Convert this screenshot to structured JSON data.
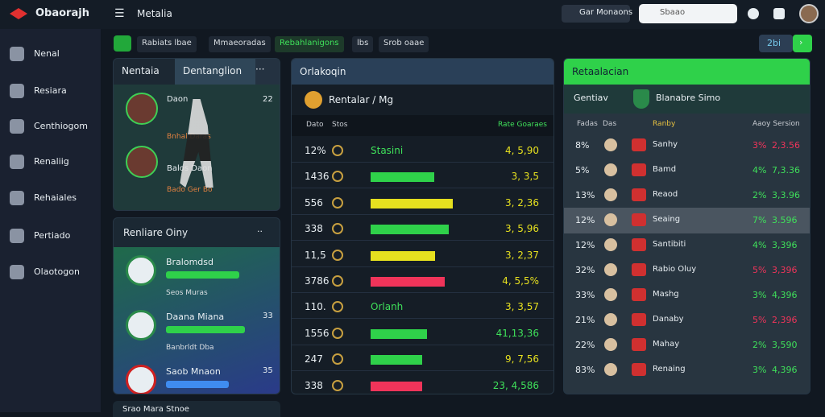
{
  "topbar": {
    "brand": "Obaorajh",
    "section": "Metalia",
    "search": "Gar Monaons",
    "input": "Sbaao"
  },
  "sidebar": [
    "Nenal",
    "Resiara",
    "Centhiogom",
    "Renaliig",
    "Rehaiales",
    "Pertiado",
    "Olaotogon"
  ],
  "toolbar": {
    "tabs": [
      "Rabiats lbae",
      "Mmaeoradas",
      "Rebahlanigons",
      "lbs",
      "Srob oaae"
    ],
    "button": "2bi"
  },
  "players_panel": {
    "tabs": [
      "Nentaia",
      "Dentanglion"
    ],
    "players": [
      {
        "name": "Daon",
        "value": "22",
        "note": "Bnhal Daras"
      },
      {
        "name": "Balos Daon",
        "note": "Bado Ger Bo"
      }
    ]
  },
  "clubs_panel": {
    "title": "Renliare Oiny",
    "clubs": [
      {
        "name": "Bralomdsd",
        "value": "",
        "note": "Seos Muras",
        "bar": 70,
        "color": "#2fd14a"
      },
      {
        "name": "Daana Miana",
        "value": "33",
        "note": "Banbrldt Dba",
        "bar": 75,
        "color": "#2fd14a"
      },
      {
        "name": "Saob Mnaon",
        "value": "35",
        "note": "",
        "bar": 60,
        "color": "#3f8cf0"
      }
    ],
    "footer": "Srao Mara Stnoe"
  },
  "stats_panel": {
    "title": "Orlakoqin",
    "subtitle": "Rentalar / Mg",
    "columns": [
      "Dato",
      "Stos",
      "Rate Goaraes"
    ],
    "rows": [
      {
        "label": "12%",
        "text": "Stasini",
        "score": "4, 5,90"
      },
      {
        "label": "1436",
        "bar": 72,
        "color": "#2fd14a",
        "score": "3, 3,5"
      },
      {
        "label": "556",
        "bar": 93,
        "color": "#e6e01f",
        "score": "3, 2,36"
      },
      {
        "label": "338",
        "bar": 88,
        "color": "#2fd14a",
        "score": "3, 5,96"
      },
      {
        "label": "11,5",
        "bar": 73,
        "color": "#e6e01f",
        "score": "3, 2,37"
      },
      {
        "label": "3786",
        "bar": 84,
        "color": "#f0345a",
        "score": "4, 5,5%"
      },
      {
        "label": "110.",
        "text": "Orlanh",
        "score": "3, 3,57"
      },
      {
        "label": "1556",
        "bar": 64,
        "color": "#2fd14a",
        "score": "41,13,36"
      },
      {
        "label": "247",
        "bar": 58,
        "color": "#2fd14a",
        "score": "9, 7,56"
      },
      {
        "label": "338",
        "bar": 58,
        "color": "#f0345a",
        "score": "23, 4,586"
      }
    ]
  },
  "table_panel": {
    "title": "Retaalacian",
    "tabs": [
      "Gentiav",
      "Blanabre Simo"
    ],
    "columns": [
      "Fadas",
      "Das",
      "Ranby",
      "Aaoy Sersion"
    ],
    "rows": [
      {
        "pos": "8%",
        "team": "Sanhy",
        "a": "3%",
        "b": "2,3.56",
        "up": false
      },
      {
        "pos": "5%",
        "team": "Bamd",
        "a": "4%",
        "b": "7,3.36",
        "up": true
      },
      {
        "pos": "13%",
        "team": "Reaod",
        "a": "2%",
        "b": "3,3.96",
        "up": true
      },
      {
        "pos": "12%",
        "team": "Seaing",
        "a": "7%",
        "b": "3.596",
        "up": true
      },
      {
        "pos": "12%",
        "team": "Santibiti",
        "a": "4%",
        "b": "3,396",
        "up": true
      },
      {
        "pos": "32%",
        "team": "Rabio Oluy",
        "a": "5%",
        "b": "3,396",
        "up": false
      },
      {
        "pos": "33%",
        "team": "Mashg",
        "a": "3%",
        "b": "4,396",
        "up": true
      },
      {
        "pos": "21%",
        "team": "Danaby",
        "a": "5%",
        "b": "2,396",
        "up": false
      },
      {
        "pos": "22%",
        "team": "Mahay",
        "a": "2%",
        "b": "3,590",
        "up": true
      },
      {
        "pos": "83%",
        "team": "Renaing",
        "a": "3%",
        "b": "4,396",
        "up": true
      }
    ]
  }
}
